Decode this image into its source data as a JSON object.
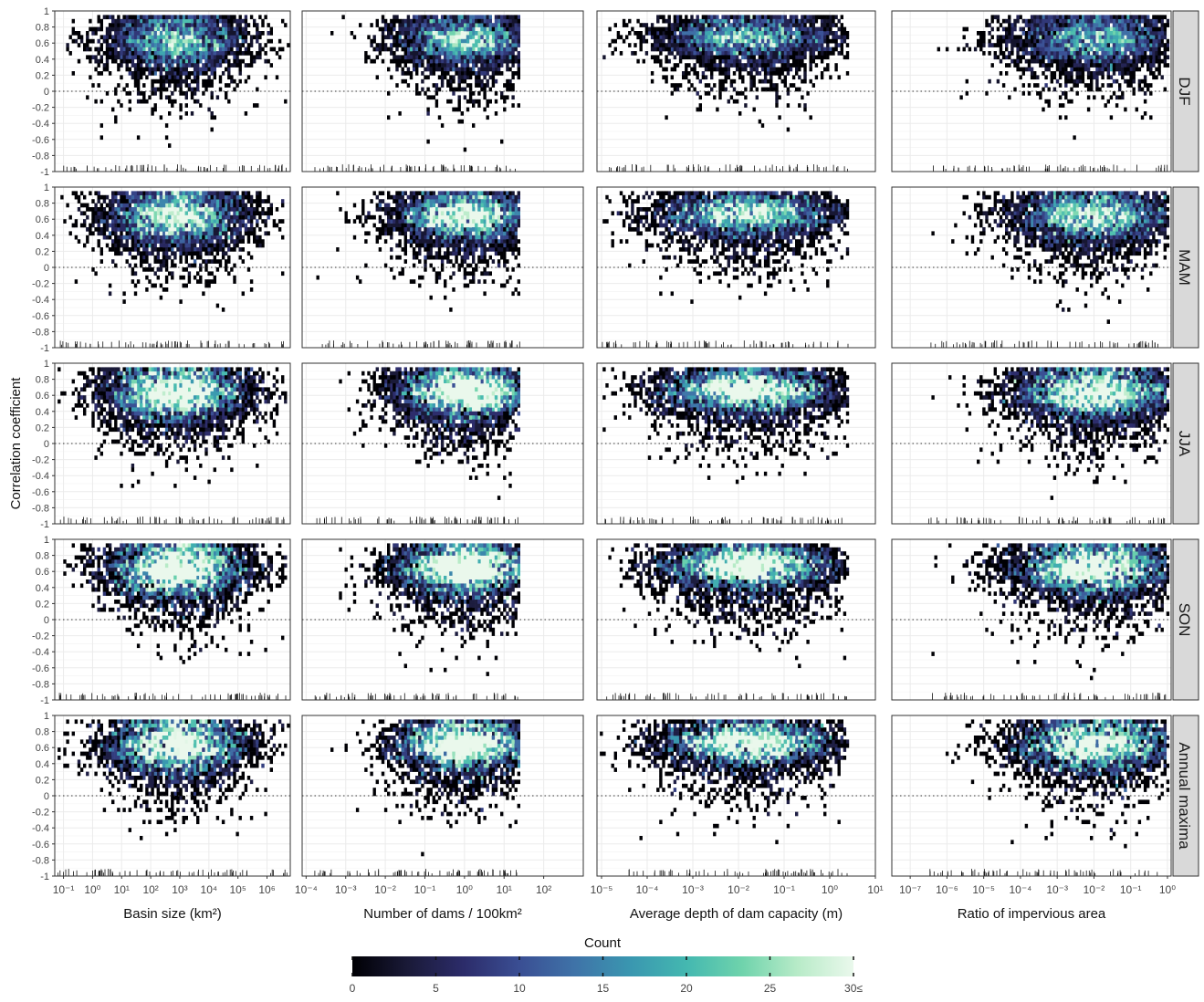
{
  "chart_data": {
    "type": "heatmap",
    "title": "",
    "ylabel": "Correlation coefficient",
    "ylim": [
      -1,
      1
    ],
    "y_ticks": [
      "1",
      "0.8",
      "0.6",
      "0.4",
      "0.2",
      "0",
      "-0.2",
      "-0.4",
      "-0.6",
      "-0.8",
      "-1"
    ],
    "y_tick_values": [
      1,
      0.8,
      0.6,
      0.4,
      0.2,
      0,
      -0.2,
      -0.4,
      -0.6,
      -0.8,
      -1
    ],
    "grid": true,
    "reference_line": 0,
    "rows": [
      "DJF",
      "MAM",
      "JJA",
      "SON",
      "Annual maxima"
    ],
    "columns": [
      {
        "xlabel": "Basin size (km²)",
        "x_scale": "log10",
        "x_ticks": [
          "10⁻¹",
          "10⁰",
          "10¹",
          "10²",
          "10³",
          "10⁴",
          "10⁵",
          "10⁶"
        ],
        "x_tick_exponents": [
          -1,
          0,
          1,
          2,
          3,
          4,
          5,
          6
        ],
        "x_log_range": [
          -1.3,
          6.8
        ],
        "density": {
          "center_log": 2.9,
          "spread_log": 1.5,
          "range_log": [
            -1.2,
            6.7
          ],
          "y_center": 0.65,
          "y_spread": 0.18
        }
      },
      {
        "xlabel": "Number of dams / 100km²",
        "x_scale": "log10",
        "x_ticks": [
          "10⁻⁴",
          "10⁻³",
          "10⁻²",
          "10⁻¹",
          "10⁰",
          "10¹",
          "10²"
        ],
        "x_tick_exponents": [
          -4,
          -3,
          -2,
          -1,
          0,
          1,
          2
        ],
        "x_log_range": [
          -4.1,
          3.0
        ],
        "density": {
          "center_log": 0.0,
          "spread_log": 1.1,
          "range_log": [
            -3.8,
            1.4
          ],
          "y_center": 0.66,
          "y_spread": 0.16
        }
      },
      {
        "xlabel": "Average depth of dam capacity (m)",
        "x_scale": "log10",
        "x_ticks": [
          "10⁻⁵",
          "10⁻⁴",
          "10⁻³",
          "10⁻²",
          "10⁻¹",
          "10⁰",
          "10¹"
        ],
        "x_tick_exponents": [
          -5,
          -4,
          -3,
          -2,
          -1,
          0,
          1
        ],
        "x_log_range": [
          -5.1,
          1.0
        ],
        "density": {
          "center_log": -1.8,
          "spread_log": 1.2,
          "range_log": [
            -5.0,
            0.4
          ],
          "y_center": 0.68,
          "y_spread": 0.14
        }
      },
      {
        "xlabel": "Ratio of impervious area",
        "x_scale": "log10",
        "x_ticks": [
          "10⁻⁷",
          "10⁻⁶",
          "10⁻⁵",
          "10⁻⁴",
          "10⁻³",
          "10⁻²",
          "10⁻¹",
          "10⁰"
        ],
        "x_tick_exponents": [
          -7,
          -6,
          -5,
          -4,
          -3,
          -2,
          -1,
          0
        ],
        "x_log_range": [
          -7.5,
          0.1
        ],
        "density": {
          "center_log": -2.0,
          "spread_log": 1.4,
          "range_log": [
            -6.5,
            0.0
          ],
          "y_center": 0.66,
          "y_spread": 0.17
        }
      }
    ],
    "legend": {
      "title": "Count",
      "placement": "bottom",
      "ticks": [
        "0",
        "5",
        "10",
        "15",
        "20",
        "25",
        "30≤"
      ],
      "tick_values": [
        0,
        5,
        10,
        15,
        20,
        25,
        30
      ],
      "range": [
        0,
        30
      ],
      "colormap": [
        "#000004",
        "#1a1a38",
        "#2c2c6a",
        "#3a4e93",
        "#3f73a8",
        "#3a97b0",
        "#44b8b0",
        "#6fd3ac",
        "#b8ebc8",
        "#eaf8ec"
      ]
    },
    "colors": {
      "grid": "#ebebeb",
      "frame": "#333333",
      "strip": "#d9d9d9",
      "zero_line": "#333333"
    }
  }
}
